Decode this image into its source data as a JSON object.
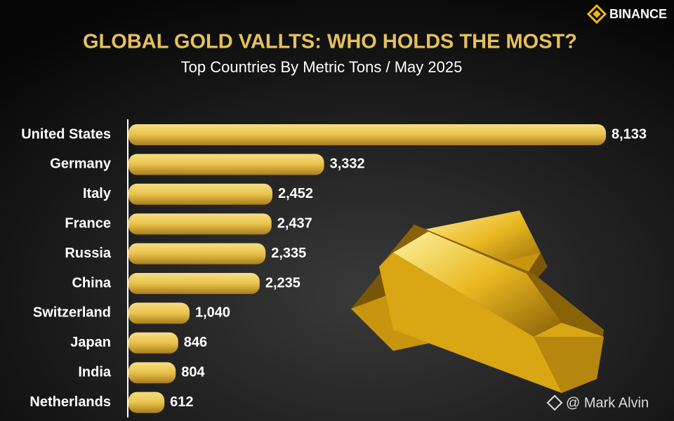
{
  "chart_data": {
    "type": "bar",
    "orientation": "horizontal",
    "title": "GLOBAL GOLD VALLTS: WHO HOLDS THE MOST?",
    "subtitle": "Top Countries By Metric Tons / May 2025",
    "brand": "BINANCE",
    "credit": "@ Mark Alvin",
    "categories": [
      "United States",
      "Germany",
      "Italy",
      "France",
      "Russia",
      "China",
      "Switzerland",
      "Japan",
      "India",
      "Netherlands"
    ],
    "values": [
      8133,
      3332,
      2452,
      2437,
      2335,
      2235,
      1040,
      846,
      804,
      612
    ],
    "value_labels": [
      "8,133",
      "3,332",
      "2,452",
      "2,437",
      "2,335",
      "2,235",
      "1,040",
      "846",
      "804",
      "612"
    ],
    "color": "#e9c24c"
  }
}
